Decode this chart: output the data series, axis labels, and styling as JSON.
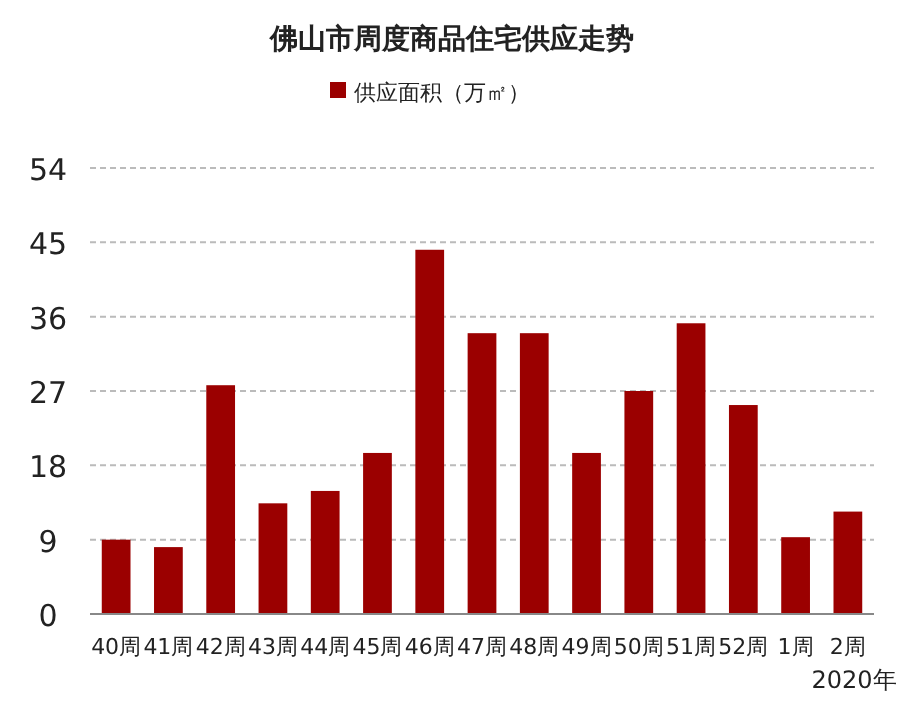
{
  "chart_data": {
    "type": "bar",
    "title": "佛山市周度商品住宅供应走势",
    "categories": [
      "40周",
      "41周",
      "42周",
      "43周",
      "44周",
      "45周",
      "46周",
      "47周",
      "48周",
      "49周",
      "50周",
      "51周",
      "52周",
      "1周",
      "2周"
    ],
    "series": [
      {
        "name": "供应面积（万㎡）",
        "color": "#9b0000",
        "values": [
          9.0,
          8.1,
          27.7,
          13.4,
          14.9,
          19.5,
          44.1,
          34.0,
          34.0,
          19.5,
          27.0,
          35.2,
          25.3,
          9.3,
          12.4
        ]
      }
    ],
    "ylim": [
      0,
      54
    ],
    "yticks": [
      0,
      9,
      18,
      27,
      36,
      45,
      54
    ],
    "grid": "y",
    "legend": "top",
    "annotations": [
      "2020年"
    ]
  }
}
